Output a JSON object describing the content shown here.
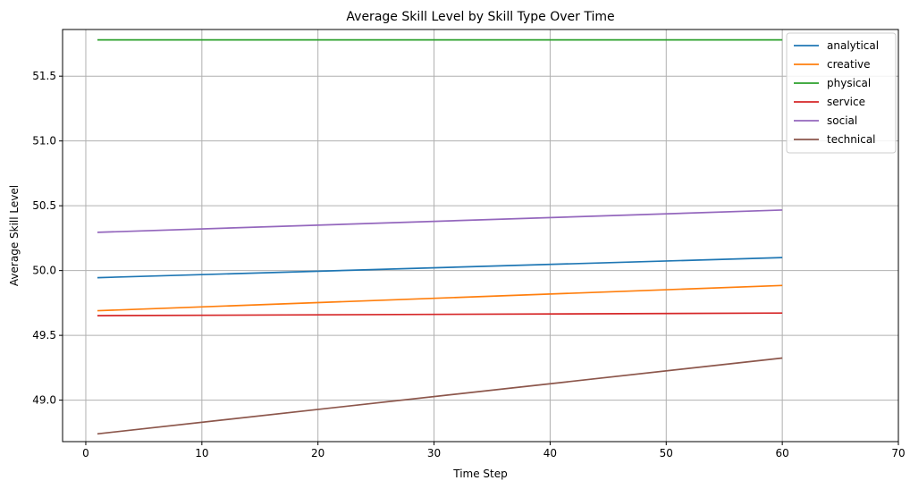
{
  "chart_data": {
    "type": "line",
    "title": "Average Skill Level by Skill Type Over Time",
    "xlabel": "Time Step",
    "ylabel": "Average Skill Level",
    "xlim": [
      -2,
      70
    ],
    "ylim": [
      48.68,
      51.86
    ],
    "xticks": [
      0,
      10,
      20,
      30,
      40,
      50,
      60,
      70
    ],
    "yticks": [
      49.0,
      49.5,
      50.0,
      50.5,
      51.0,
      51.5
    ],
    "ytick_labels": [
      "49.0",
      "49.5",
      "50.0",
      "50.5",
      "51.0",
      "51.5"
    ],
    "grid": true,
    "legend_position": "top-right",
    "series": [
      {
        "name": "analytical",
        "color": "#1f77b4",
        "x": [
          1,
          60
        ],
        "y": [
          49.945,
          50.1
        ]
      },
      {
        "name": "creative",
        "color": "#ff7f0e",
        "x": [
          1,
          60
        ],
        "y": [
          49.69,
          49.885
        ]
      },
      {
        "name": "physical",
        "color": "#2ca02c",
        "x": [
          1,
          60
        ],
        "y": [
          51.78,
          51.78
        ]
      },
      {
        "name": "service",
        "color": "#d62728",
        "x": [
          1,
          60
        ],
        "y": [
          49.652,
          49.672
        ]
      },
      {
        "name": "social",
        "color": "#9467bd",
        "x": [
          1,
          60
        ],
        "y": [
          50.295,
          50.467
        ]
      },
      {
        "name": "technical",
        "color": "#8c564b",
        "x": [
          1,
          60
        ],
        "y": [
          48.74,
          49.325
        ]
      }
    ]
  }
}
